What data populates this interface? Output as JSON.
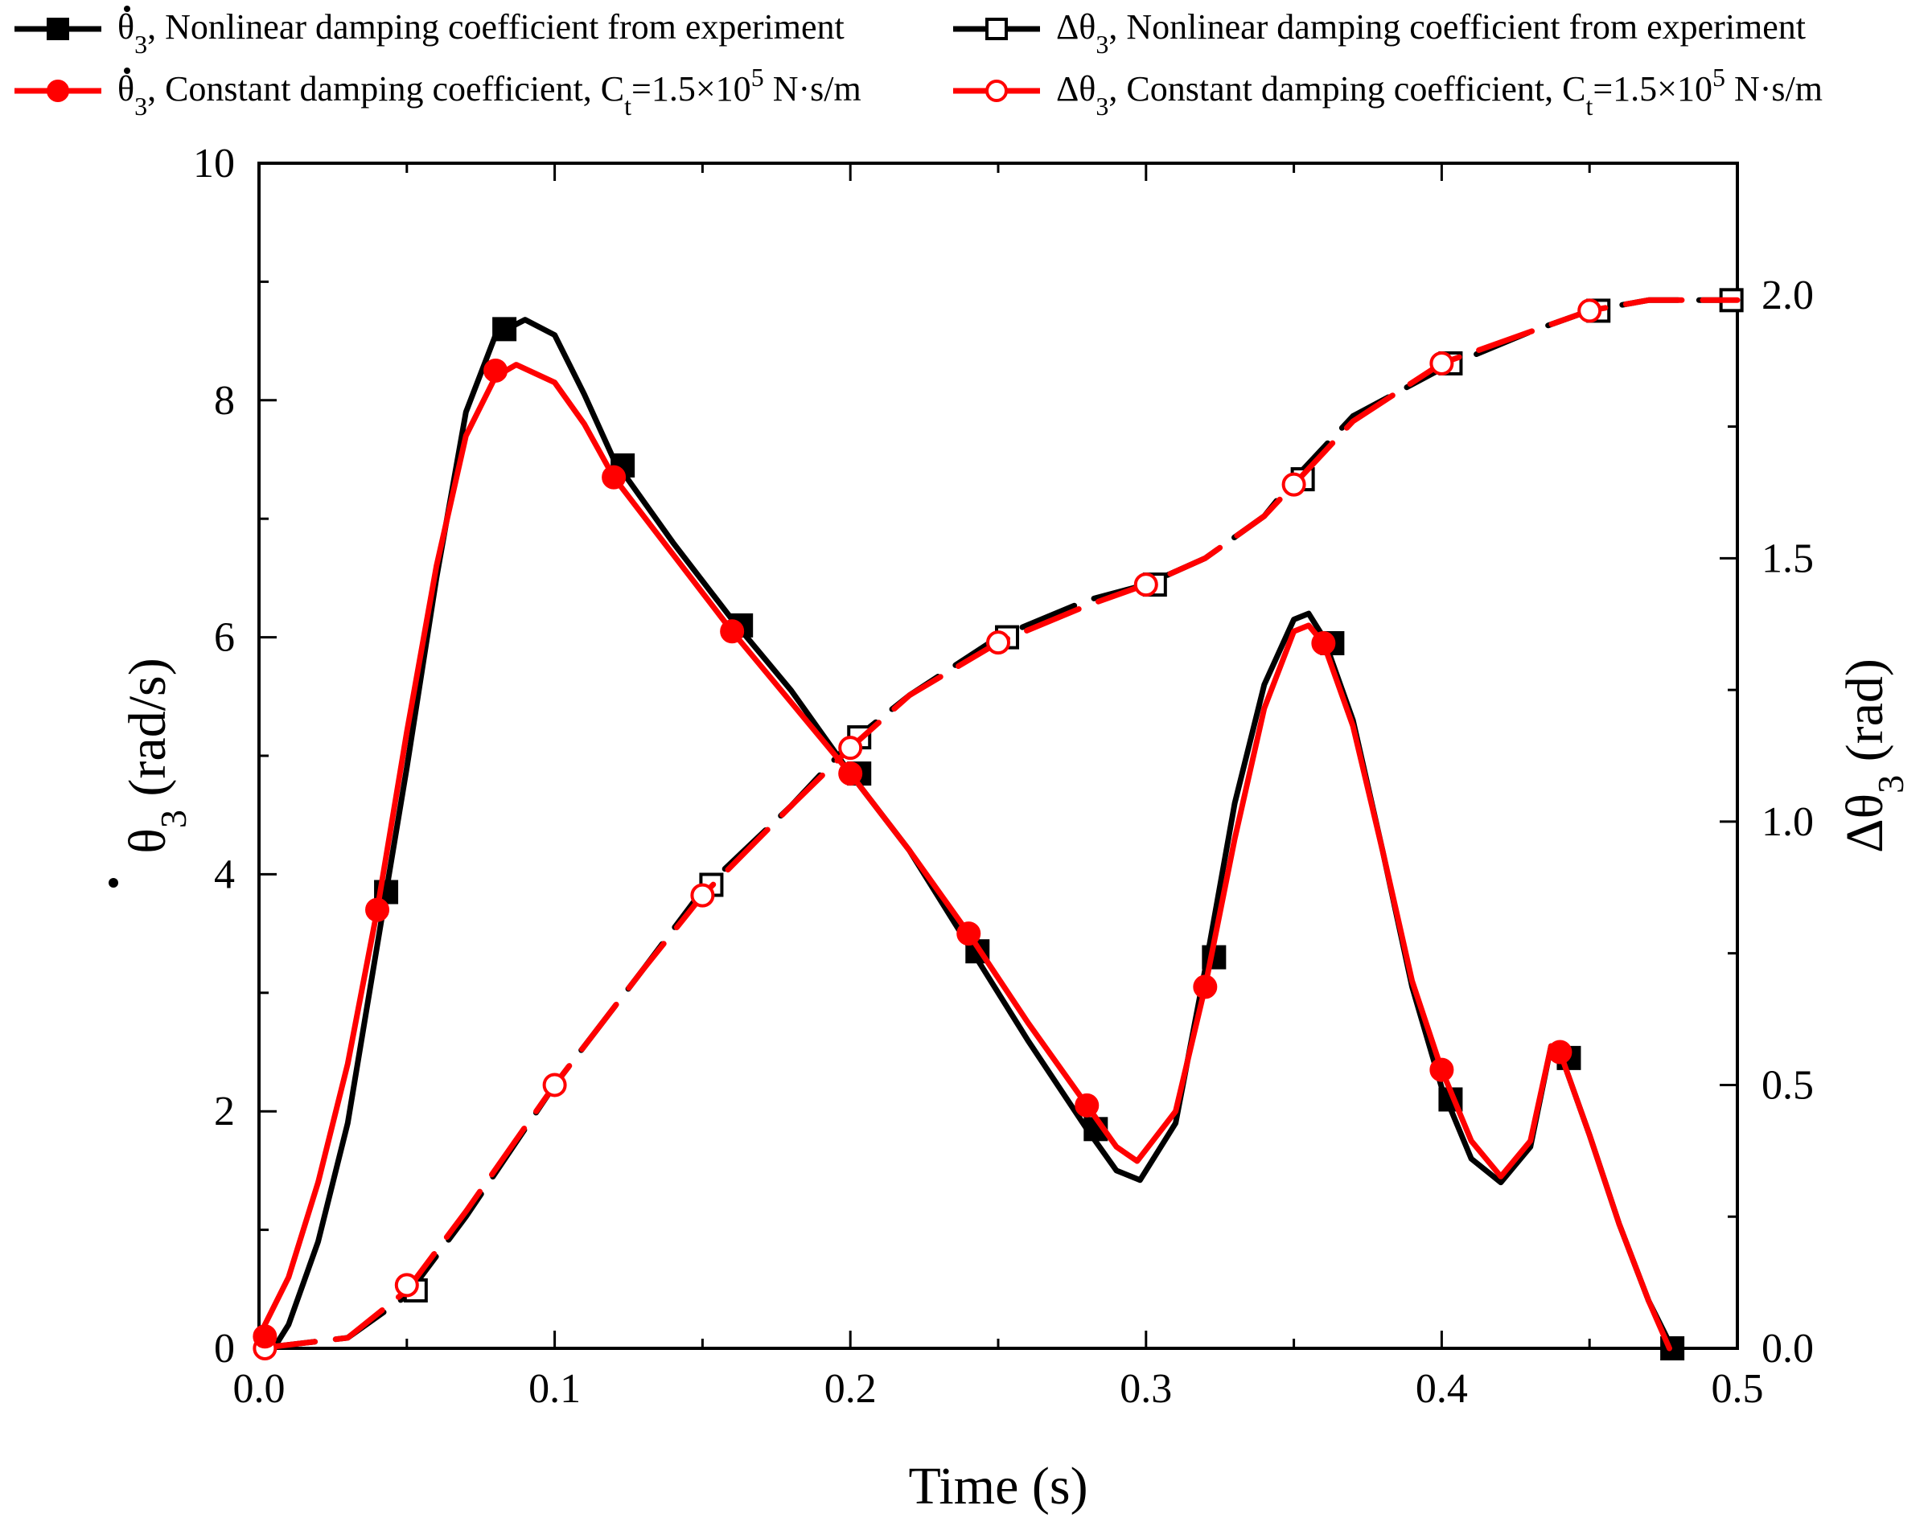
{
  "chart_data": {
    "type": "line",
    "xlabel": "Time (s)",
    "y_left": {
      "label_symbol": "θ",
      "label_sub": "3",
      "label_unit": " (rad/s)",
      "lim": [
        0,
        10
      ],
      "ticks": [
        "0",
        "2",
        "4",
        "6",
        "8",
        "10"
      ]
    },
    "y_right": {
      "label_symbol": "Δθ",
      "label_sub": "3",
      "label_unit": " (rad)",
      "lim": [
        0,
        2.25
      ],
      "ticks": [
        "0.0",
        "0.5",
        "1.0",
        "1.5",
        "2.0"
      ]
    },
    "xlim": [
      0,
      0.5
    ],
    "x_ticks": [
      "0.0",
      "0.1",
      "0.2",
      "0.3",
      "0.4",
      "0.5"
    ],
    "colors": {
      "black": "#000000",
      "red": "#ff0000"
    },
    "series": [
      {
        "id": "vel_exp",
        "axis": "left",
        "color": "#000000",
        "dashed": false,
        "marker": "square",
        "filled": true,
        "points": [
          [
            0.0,
            0.0
          ],
          [
            0.005,
            0.0
          ],
          [
            0.01,
            0.2
          ],
          [
            0.02,
            0.9
          ],
          [
            0.03,
            1.9
          ],
          [
            0.04,
            3.4
          ],
          [
            0.05,
            4.9
          ],
          [
            0.06,
            6.5
          ],
          [
            0.07,
            7.9
          ],
          [
            0.08,
            8.55
          ],
          [
            0.09,
            8.68
          ],
          [
            0.1,
            8.55
          ],
          [
            0.11,
            8.05
          ],
          [
            0.12,
            7.5
          ],
          [
            0.14,
            6.8
          ],
          [
            0.16,
            6.15
          ],
          [
            0.18,
            5.55
          ],
          [
            0.2,
            4.85
          ],
          [
            0.22,
            4.2
          ],
          [
            0.24,
            3.4
          ],
          [
            0.26,
            2.6
          ],
          [
            0.28,
            1.85
          ],
          [
            0.29,
            1.5
          ],
          [
            0.298,
            1.42
          ],
          [
            0.31,
            1.9
          ],
          [
            0.32,
            3.2
          ],
          [
            0.33,
            4.6
          ],
          [
            0.34,
            5.6
          ],
          [
            0.35,
            6.15
          ],
          [
            0.355,
            6.2
          ],
          [
            0.36,
            6.0
          ],
          [
            0.37,
            5.3
          ],
          [
            0.38,
            4.2
          ],
          [
            0.39,
            3.05
          ],
          [
            0.4,
            2.2
          ],
          [
            0.41,
            1.6
          ],
          [
            0.42,
            1.4
          ],
          [
            0.43,
            1.7
          ],
          [
            0.437,
            2.55
          ],
          [
            0.44,
            2.5
          ],
          [
            0.45,
            1.8
          ],
          [
            0.46,
            1.05
          ],
          [
            0.47,
            0.4
          ],
          [
            0.478,
            0.0
          ]
        ],
        "markers": [
          [
            0.043,
            3.85
          ],
          [
            0.083,
            8.6
          ],
          [
            0.123,
            7.45
          ],
          [
            0.163,
            6.1
          ],
          [
            0.203,
            4.85
          ],
          [
            0.243,
            3.35
          ],
          [
            0.283,
            1.85
          ],
          [
            0.323,
            3.3
          ],
          [
            0.363,
            5.95
          ],
          [
            0.403,
            2.1
          ],
          [
            0.443,
            2.45
          ],
          [
            0.478,
            0.0
          ]
        ]
      },
      {
        "id": "vel_const",
        "axis": "left",
        "color": "#ff0000",
        "dashed": false,
        "marker": "circle",
        "filled": true,
        "points": [
          [
            0.0,
            0.1
          ],
          [
            0.01,
            0.6
          ],
          [
            0.02,
            1.4
          ],
          [
            0.03,
            2.4
          ],
          [
            0.04,
            3.7
          ],
          [
            0.05,
            5.2
          ],
          [
            0.06,
            6.6
          ],
          [
            0.07,
            7.7
          ],
          [
            0.08,
            8.2
          ],
          [
            0.087,
            8.3
          ],
          [
            0.1,
            8.15
          ],
          [
            0.11,
            7.8
          ],
          [
            0.12,
            7.35
          ],
          [
            0.14,
            6.7
          ],
          [
            0.16,
            6.05
          ],
          [
            0.18,
            5.45
          ],
          [
            0.2,
            4.85
          ],
          [
            0.22,
            4.2
          ],
          [
            0.24,
            3.5
          ],
          [
            0.26,
            2.75
          ],
          [
            0.28,
            2.05
          ],
          [
            0.29,
            1.7
          ],
          [
            0.297,
            1.58
          ],
          [
            0.31,
            2.0
          ],
          [
            0.32,
            3.05
          ],
          [
            0.33,
            4.3
          ],
          [
            0.34,
            5.4
          ],
          [
            0.35,
            6.05
          ],
          [
            0.355,
            6.1
          ],
          [
            0.36,
            5.95
          ],
          [
            0.37,
            5.25
          ],
          [
            0.38,
            4.2
          ],
          [
            0.39,
            3.1
          ],
          [
            0.4,
            2.35
          ],
          [
            0.41,
            1.75
          ],
          [
            0.42,
            1.45
          ],
          [
            0.43,
            1.75
          ],
          [
            0.437,
            2.55
          ],
          [
            0.44,
            2.5
          ],
          [
            0.45,
            1.8
          ],
          [
            0.46,
            1.05
          ],
          [
            0.47,
            0.4
          ],
          [
            0.477,
            0.0
          ]
        ],
        "markers": [
          [
            0.002,
            0.1
          ],
          [
            0.04,
            3.7
          ],
          [
            0.08,
            8.25
          ],
          [
            0.12,
            7.35
          ],
          [
            0.16,
            6.05
          ],
          [
            0.2,
            4.85
          ],
          [
            0.24,
            3.5
          ],
          [
            0.28,
            2.05
          ],
          [
            0.32,
            3.05
          ],
          [
            0.36,
            5.95
          ],
          [
            0.4,
            2.35
          ],
          [
            0.44,
            2.5
          ]
        ]
      },
      {
        "id": "ang_exp",
        "axis": "right",
        "color": "#000000",
        "dashed": true,
        "marker": "square",
        "filled": false,
        "points": [
          [
            0.0,
            0.0
          ],
          [
            0.03,
            0.02
          ],
          [
            0.05,
            0.1
          ],
          [
            0.07,
            0.25
          ],
          [
            0.1,
            0.5
          ],
          [
            0.13,
            0.72
          ],
          [
            0.15,
            0.87
          ],
          [
            0.18,
            1.03
          ],
          [
            0.2,
            1.15
          ],
          [
            0.22,
            1.24
          ],
          [
            0.25,
            1.35
          ],
          [
            0.28,
            1.42
          ],
          [
            0.3,
            1.45
          ],
          [
            0.32,
            1.5
          ],
          [
            0.34,
            1.58
          ],
          [
            0.35,
            1.65
          ],
          [
            0.37,
            1.77
          ],
          [
            0.4,
            1.86
          ],
          [
            0.43,
            1.93
          ],
          [
            0.45,
            1.97
          ],
          [
            0.47,
            1.99
          ],
          [
            0.5,
            1.99
          ]
        ],
        "markers": [
          [
            0.053,
            0.11
          ],
          [
            0.153,
            0.88
          ],
          [
            0.203,
            1.16
          ],
          [
            0.253,
            1.35
          ],
          [
            0.303,
            1.45
          ],
          [
            0.353,
            1.65
          ],
          [
            0.403,
            1.87
          ],
          [
            0.453,
            1.97
          ],
          [
            0.498,
            1.99
          ]
        ]
      },
      {
        "id": "ang_const",
        "axis": "right",
        "color": "#ff0000",
        "dashed": true,
        "marker": "circle",
        "filled": false,
        "points": [
          [
            0.0,
            0.0
          ],
          [
            0.03,
            0.02
          ],
          [
            0.05,
            0.11
          ],
          [
            0.07,
            0.26
          ],
          [
            0.1,
            0.5
          ],
          [
            0.13,
            0.72
          ],
          [
            0.15,
            0.86
          ],
          [
            0.18,
            1.03
          ],
          [
            0.2,
            1.14
          ],
          [
            0.22,
            1.24
          ],
          [
            0.25,
            1.34
          ],
          [
            0.28,
            1.41
          ],
          [
            0.3,
            1.45
          ],
          [
            0.32,
            1.5
          ],
          [
            0.34,
            1.58
          ],
          [
            0.35,
            1.64
          ],
          [
            0.37,
            1.76
          ],
          [
            0.4,
            1.87
          ],
          [
            0.43,
            1.93
          ],
          [
            0.45,
            1.97
          ],
          [
            0.47,
            1.99
          ],
          [
            0.5,
            1.99
          ]
        ],
        "markers": [
          [
            0.002,
            0.0
          ],
          [
            0.05,
            0.12
          ],
          [
            0.1,
            0.5
          ],
          [
            0.15,
            0.86
          ],
          [
            0.2,
            1.14
          ],
          [
            0.25,
            1.34
          ],
          [
            0.3,
            1.45
          ],
          [
            0.35,
            1.64
          ],
          [
            0.4,
            1.87
          ],
          [
            0.45,
            1.97
          ]
        ]
      }
    ],
    "legend": {
      "placement": "top, above plot, 2 columns x 2 rows",
      "entries": [
        {
          "series": "vel_exp",
          "symbol": "θ",
          "sub": "3",
          "dot": true,
          "text": ", Nonlinear damping coefficient from experiment"
        },
        {
          "series": "ang_exp",
          "symbol": "Δθ",
          "sub": "3",
          "dot": false,
          "text": ", Nonlinear damping coefficient from experiment"
        },
        {
          "series": "vel_const",
          "symbol": "θ",
          "sub": "3",
          "dot": true,
          "text": ", Constant damping coefficient, C",
          "c_sub": "t",
          "eq": "=1.5×10",
          "exp": "5",
          "unit": " N·s/m"
        },
        {
          "series": "ang_const",
          "symbol": "Δθ",
          "sub": "3",
          "dot": false,
          "text": ", Constant damping coefficient, C",
          "c_sub": "t",
          "eq": "=1.5×10",
          "exp": "5",
          "unit": " N·s/m"
        }
      ]
    }
  }
}
